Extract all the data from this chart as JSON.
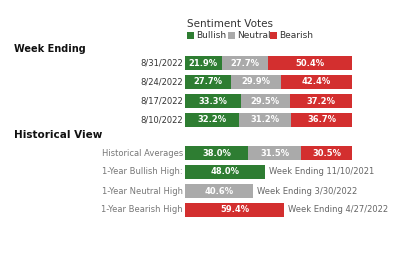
{
  "title": "Sentiment Votes",
  "legend_labels": [
    "Bullish",
    "Neutral",
    "Bearish"
  ],
  "legend_colors": [
    "#2e7d32",
    "#aaaaaa",
    "#d32f2f"
  ],
  "week_ending_label": "Week Ending",
  "historical_label": "Historical View",
  "weekly_rows": [
    {
      "label": "8/31/2022",
      "bullish": 21.9,
      "neutral": 27.7,
      "bearish": 50.4
    },
    {
      "label": "8/24/2022",
      "bullish": 27.7,
      "neutral": 29.9,
      "bearish": 42.4
    },
    {
      "label": "8/17/2022",
      "bullish": 33.3,
      "neutral": 29.5,
      "bearish": 37.2
    },
    {
      "label": "8/10/2022",
      "bullish": 32.2,
      "neutral": 31.2,
      "bearish": 36.7
    }
  ],
  "historical_rows": [
    {
      "label": "Historical Averages",
      "bullish": 38.0,
      "neutral": 31.5,
      "bearish": 30.5,
      "annotation": null
    },
    {
      "label": "1-Year Bullish High:",
      "bullish": 48.0,
      "neutral": null,
      "bearish": null,
      "annotation": "Week Ending 11/10/2021"
    },
    {
      "label": "1-Year Neutral High",
      "bullish": null,
      "neutral": 40.6,
      "bearish": null,
      "annotation": "Week Ending 3/30/2022"
    },
    {
      "label": "1-Year Bearish High",
      "bullish": null,
      "neutral": null,
      "bearish": 59.4,
      "annotation": "Week Ending 4/27/2022"
    }
  ],
  "bullish_color": "#2e7d32",
  "neutral_color": "#aaaaaa",
  "bearish_color": "#d32f2f",
  "bar_text_color": "#ffffff",
  "annotation_text_color": "#666666",
  "bg_color": "#ffffff",
  "bar_text_fontsize": 6.0,
  "label_fontsize": 6.0,
  "title_fontsize": 7.5,
  "legend_fontsize": 6.5,
  "week_ending_fontsize": 7.0,
  "historical_fontsize": 7.5,
  "hist_label_fontsize": 6.0,
  "annotation_fontsize": 6.0
}
